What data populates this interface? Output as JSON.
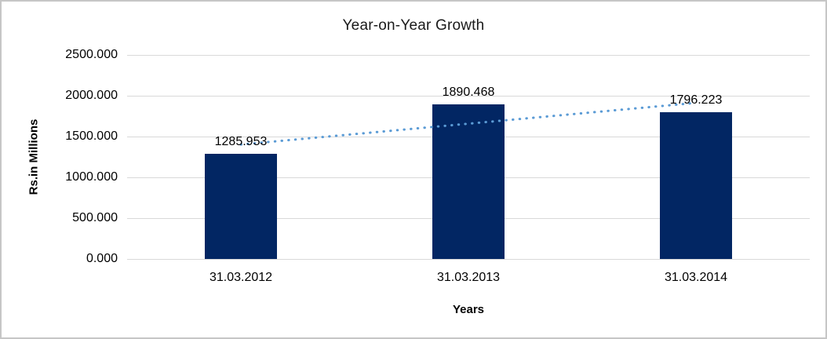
{
  "chart_data": {
    "type": "bar",
    "title": "Year-on-Year Growth",
    "categories": [
      "31.03.2012",
      "31.03.2013",
      "31.03.2014"
    ],
    "values": [
      1285.953,
      1890.468,
      1796.223
    ],
    "data_labels": [
      "1285.953",
      "1890.468",
      "1796.223"
    ],
    "xlabel": "Years",
    "ylabel": "Rs.in Millions",
    "ylim": [
      0,
      2500
    ],
    "ytick_step": 500,
    "yticks": [
      "2500.000",
      "2000.000",
      "1500.000",
      "1000.000",
      "500.000",
      "0.000"
    ],
    "grid": true,
    "legend": "none",
    "trendline": {
      "type": "linear",
      "style": "dotted"
    },
    "colors": {
      "bar": "#022663",
      "trendline": "#5b9bd5",
      "gridline": "#d9d9d9",
      "text": "#000000",
      "title_text": "#1a1a1a",
      "frame_border": "#c6c6c6",
      "background": "#ffffff"
    }
  }
}
